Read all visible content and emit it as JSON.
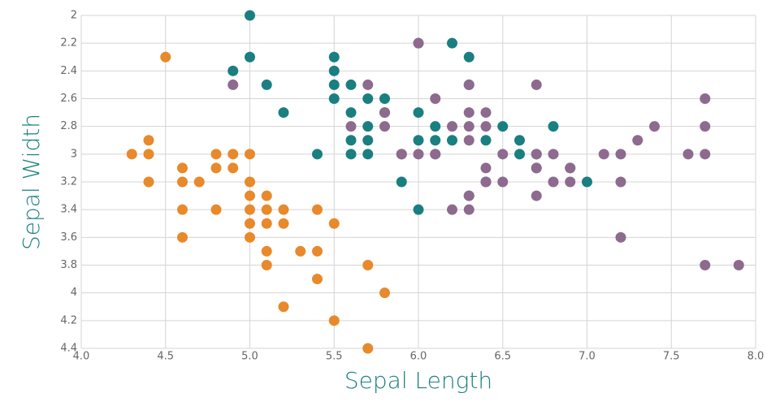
{
  "chart_data": {
    "type": "scatter",
    "x_label": "Sepal Length",
    "y_label": "Sepal Width",
    "xlim": [
      4.0,
      8.0
    ],
    "xticks": [
      {
        "value": 4.0,
        "label": "4.0"
      },
      {
        "value": 4.5,
        "label": "4.5"
      },
      {
        "value": 5.0,
        "label": "5.0"
      },
      {
        "value": 5.5,
        "label": "5.5"
      },
      {
        "value": 6.0,
        "label": "6.0"
      },
      {
        "value": 6.5,
        "label": "6.5"
      },
      {
        "value": 7.0,
        "label": "7.0"
      },
      {
        "value": 7.5,
        "label": "7.5"
      },
      {
        "value": 8.0,
        "label": "8.0"
      }
    ],
    "ylim": [
      2,
      4.4
    ],
    "yticks": [
      2,
      2.2,
      2.4,
      2.6,
      2.8,
      3,
      3.2,
      3.4,
      3.6,
      3.8,
      4,
      4.2,
      4.4
    ],
    "y_reversed": true,
    "grid": true,
    "series": [
      {
        "color": "#e8892b",
        "x": [
          4.3,
          4.5,
          4.4,
          4.4,
          4.4,
          4.6,
          4.6,
          4.7,
          4.6,
          4.6,
          4.8,
          4.8,
          4.8,
          4.9,
          4.9,
          5.0,
          5.0,
          5.0,
          5.0,
          5.0,
          5.0,
          5.1,
          5.1,
          5.1,
          5.1,
          5.1,
          5.2,
          5.2,
          5.2,
          5.3,
          5.4,
          5.4,
          5.4,
          5.5,
          5.5,
          5.7,
          5.7,
          5.8
        ],
        "values": [
          3.0,
          2.3,
          2.9,
          3.0,
          3.2,
          3.1,
          3.2,
          3.2,
          3.4,
          3.6,
          3.0,
          3.1,
          3.4,
          3.0,
          3.1,
          3.0,
          3.2,
          3.3,
          3.4,
          3.5,
          3.6,
          3.3,
          3.4,
          3.5,
          3.7,
          3.8,
          3.4,
          3.5,
          4.1,
          3.7,
          3.4,
          3.7,
          3.9,
          3.5,
          4.2,
          3.8,
          4.4,
          4.0
        ]
      },
      {
        "color": "#1a7f80",
        "x": [
          5.0,
          5.0,
          4.9,
          5.1,
          5.2,
          5.4,
          5.5,
          5.5,
          5.5,
          5.5,
          5.6,
          5.6,
          5.6,
          5.6,
          5.7,
          5.7,
          5.7,
          5.7,
          5.8,
          5.8,
          5.9,
          5.9,
          6.0,
          6.0,
          6.0,
          6.0,
          6.1,
          6.1,
          6.1,
          6.2,
          6.2,
          6.3,
          6.3,
          6.3,
          6.4,
          6.4,
          6.5,
          6.6,
          6.6,
          6.7,
          6.7,
          6.8,
          6.9,
          7.0
        ],
        "values": [
          2.0,
          2.3,
          2.4,
          2.5,
          2.7,
          3.0,
          2.3,
          2.4,
          2.5,
          2.6,
          2.5,
          2.7,
          2.9,
          3.0,
          2.6,
          2.8,
          2.9,
          3.0,
          2.6,
          2.7,
          3.0,
          3.2,
          2.2,
          2.7,
          2.9,
          3.4,
          2.8,
          2.9,
          3.0,
          2.2,
          2.9,
          2.3,
          2.5,
          3.3,
          2.9,
          3.2,
          2.8,
          2.9,
          3.0,
          3.0,
          3.1,
          2.8,
          3.1,
          3.2
        ]
      },
      {
        "color": "#8e6a8f",
        "x": [
          4.9,
          5.6,
          5.7,
          5.8,
          5.8,
          5.9,
          6.0,
          6.0,
          6.1,
          6.1,
          6.2,
          6.2,
          6.3,
          6.3,
          6.3,
          6.3,
          6.3,
          6.3,
          6.4,
          6.4,
          6.4,
          6.4,
          6.5,
          6.5,
          6.7,
          6.7,
          6.7,
          6.7,
          6.8,
          6.8,
          6.9,
          6.9,
          7.1,
          7.2,
          7.2,
          7.2,
          7.3,
          7.4,
          7.6,
          7.7,
          7.7,
          7.7,
          7.7,
          7.9
        ],
        "values": [
          2.5,
          2.8,
          2.5,
          2.7,
          2.8,
          3.0,
          2.2,
          3.0,
          2.6,
          3.0,
          2.8,
          3.4,
          2.5,
          2.7,
          2.8,
          2.9,
          3.3,
          3.4,
          2.7,
          2.8,
          3.1,
          3.2,
          3.0,
          3.2,
          2.5,
          3.0,
          3.1,
          3.3,
          3.0,
          3.2,
          3.1,
          3.2,
          3.0,
          3.0,
          3.2,
          3.6,
          2.9,
          2.8,
          3.0,
          2.6,
          2.8,
          3.0,
          3.8,
          3.8
        ]
      }
    ]
  }
}
